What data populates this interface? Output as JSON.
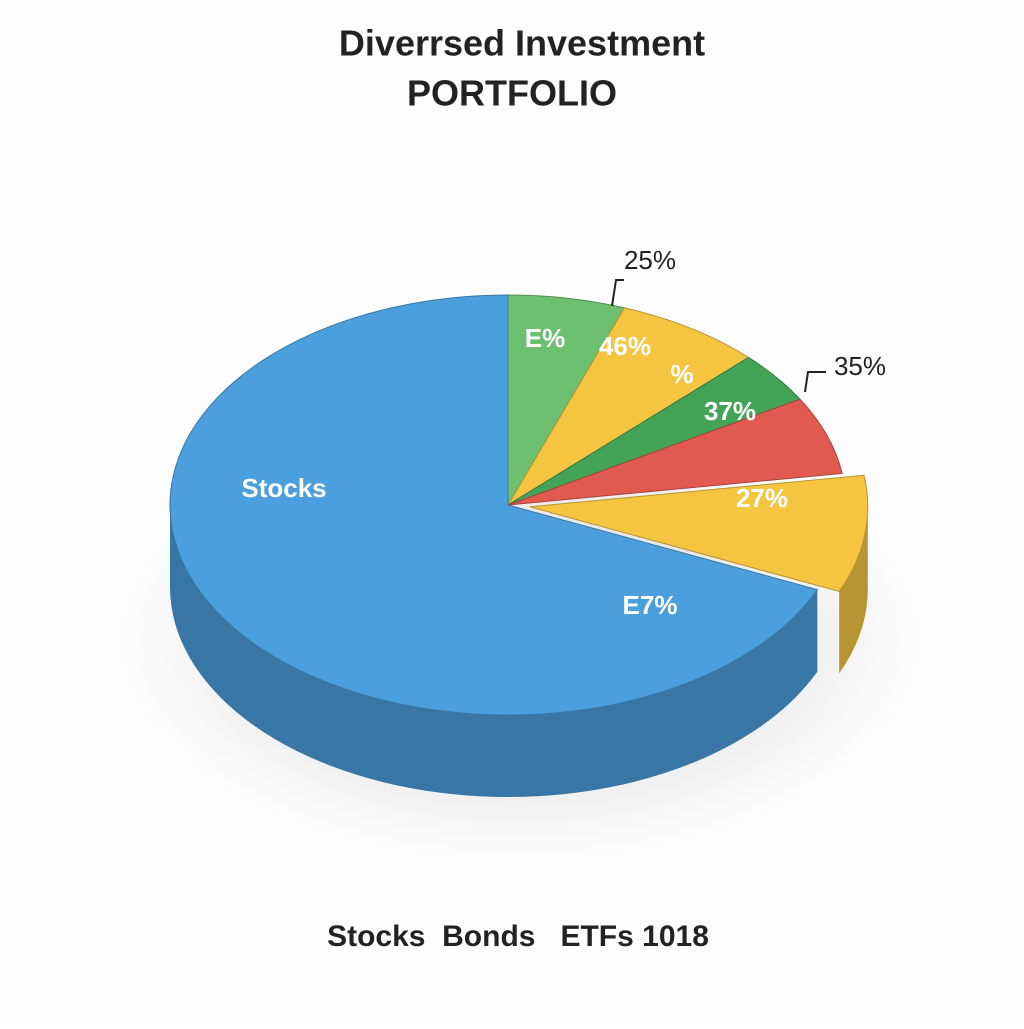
{
  "chart_data": {
    "type": "pie",
    "title": "Diverrsed Investment",
    "subtitle": "PORTFOLIO",
    "categories": [
      null,
      null,
      null,
      null,
      null,
      "Stocks"
    ],
    "values": [
      5.6,
      7,
      4,
      6,
      9,
      68.4
    ],
    "colors": [
      "#6cc070",
      "#f5c542",
      "#43a356",
      "#e05a4f",
      "#f5c542",
      "#4a9fdc"
    ],
    "exploded": [
      false,
      false,
      false,
      false,
      true,
      false
    ],
    "annotations": [
      "E%",
      "46%",
      "%",
      "37%",
      "27%",
      "E7%",
      "25%",
      "35%"
    ],
    "footer": "Stocks  Bonds   ETFs 1018"
  }
}
